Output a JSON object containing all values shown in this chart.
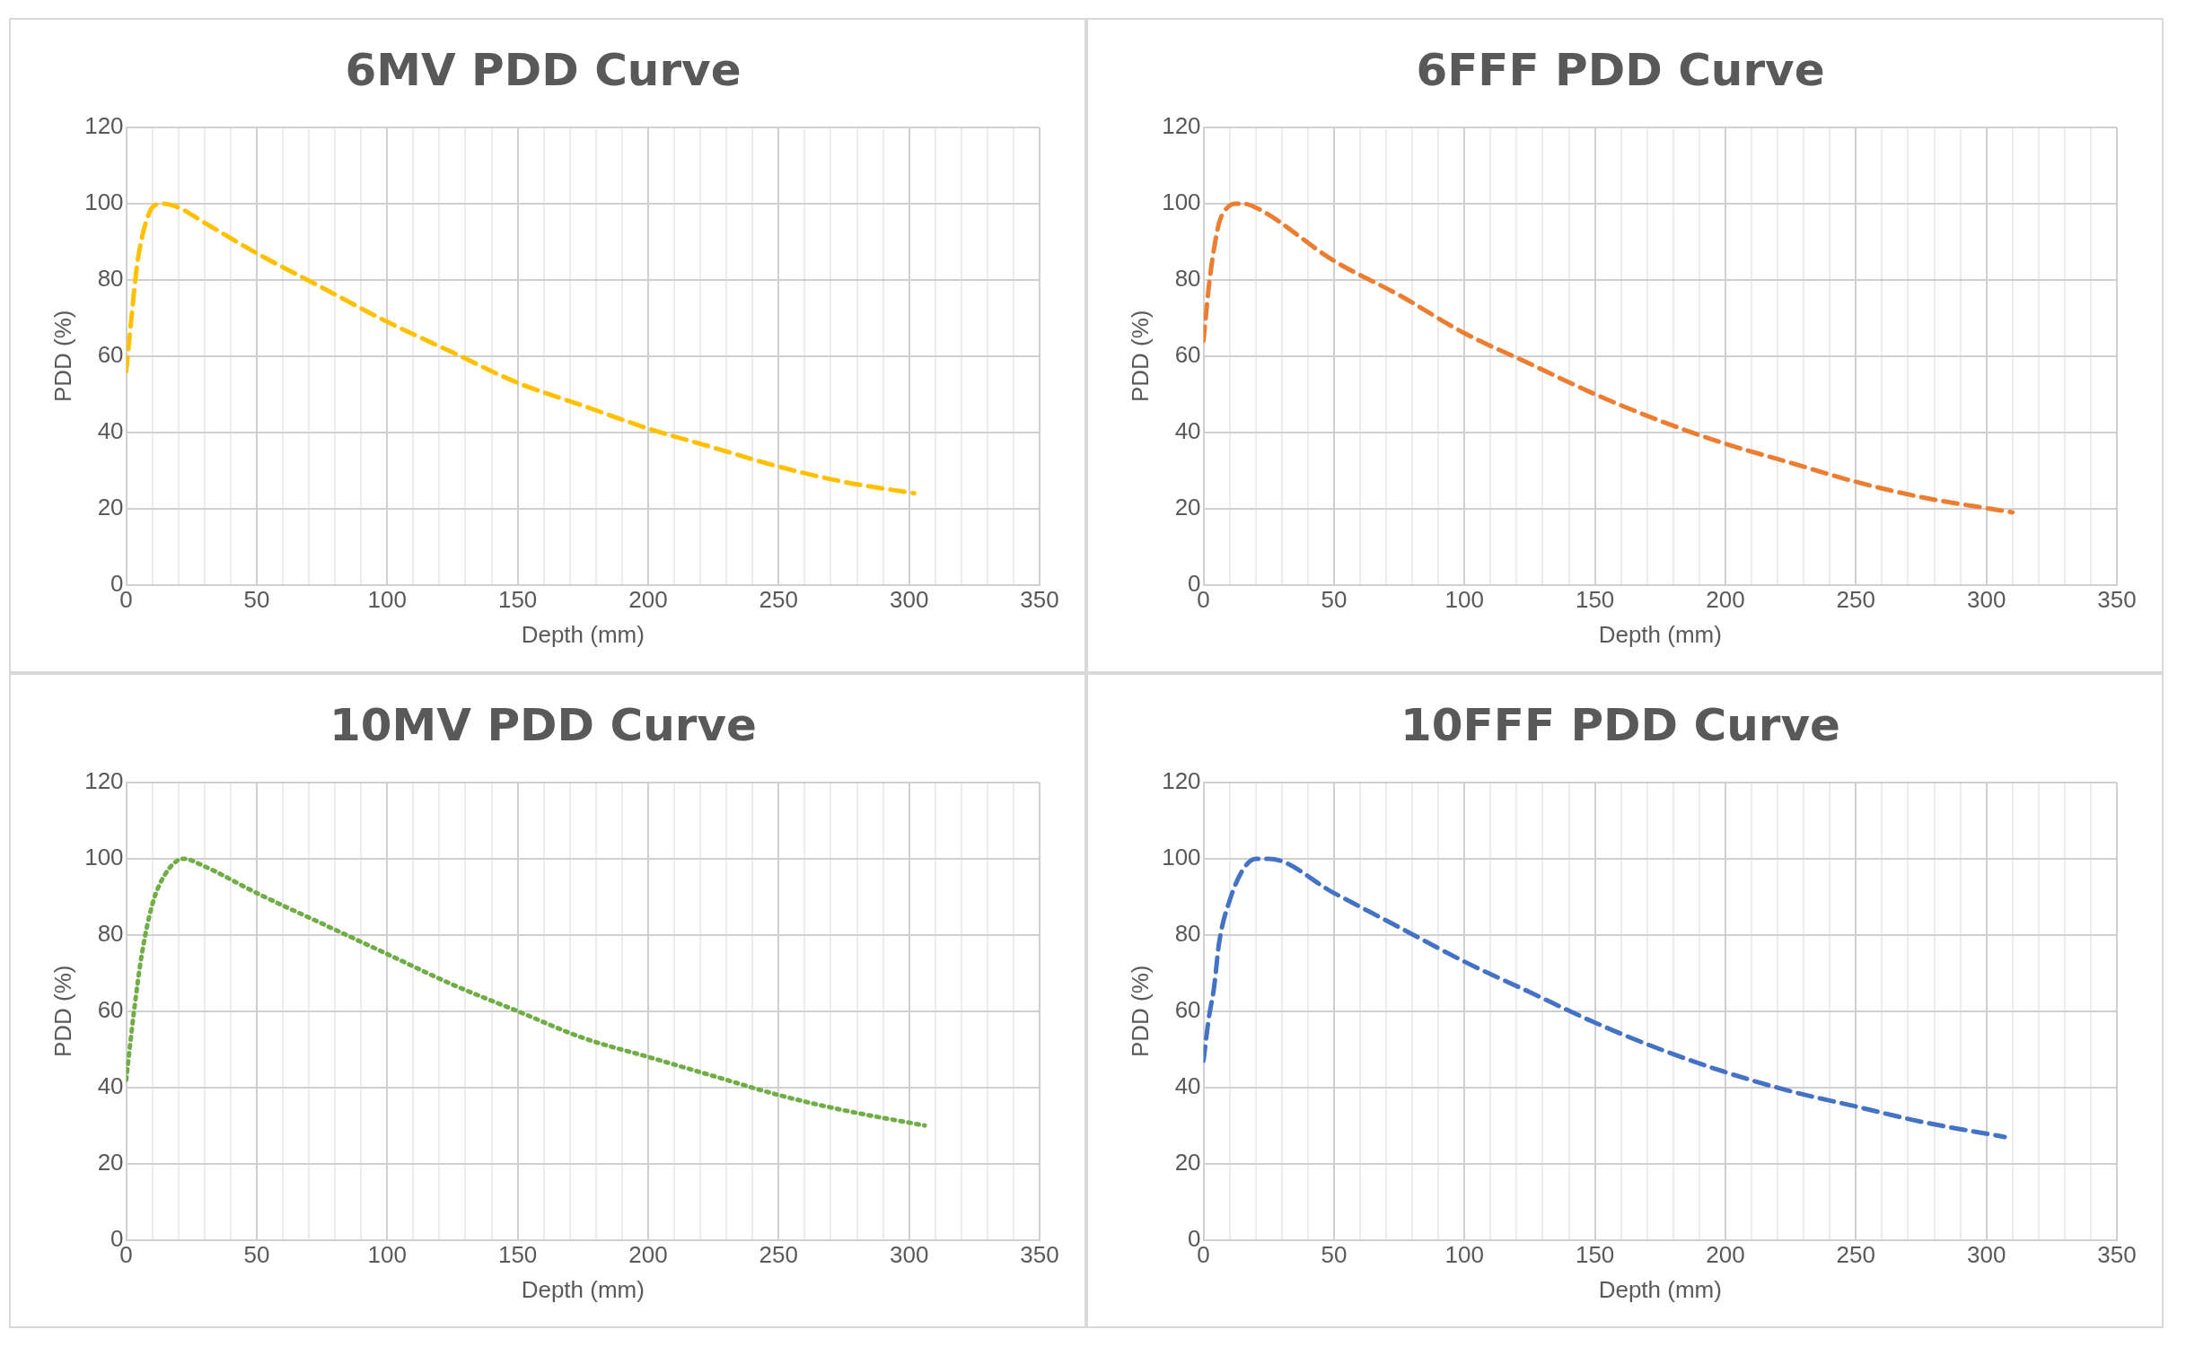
{
  "chart_data": [
    {
      "type": "line",
      "title": "6MV PDD Curve",
      "xlabel": "Depth (mm)",
      "ylabel": "PDD (%)",
      "line_style": "dashed",
      "marker": "none",
      "grid": true,
      "legend": false,
      "series": [
        {
          "color": "#ffc000",
          "x": [
            0,
            2,
            4,
            6,
            8,
            10,
            14,
            20,
            30,
            50,
            75,
            100,
            125,
            150,
            175,
            200,
            225,
            250,
            275,
            302
          ],
          "values": [
            56,
            70,
            83,
            91,
            96,
            99,
            100,
            99,
            95,
            87,
            78,
            69,
            61,
            53,
            47,
            41,
            36,
            31,
            27,
            24
          ]
        }
      ],
      "xlim": [
        0,
        350
      ],
      "xticks": [
        0,
        {
          "value": 10,
          "label": null
        },
        {
          "value": 20,
          "label": null
        },
        {
          "value": 30,
          "label": null
        },
        {
          "value": 40,
          "label": null
        },
        50,
        {
          "value": 60,
          "label": null
        },
        {
          "value": 70,
          "label": null
        },
        {
          "value": 80,
          "label": null
        },
        {
          "value": 90,
          "label": null
        },
        100,
        {
          "value": 110,
          "label": null
        },
        {
          "value": 120,
          "label": null
        },
        {
          "value": 130,
          "label": null
        },
        {
          "value": 140,
          "label": null
        },
        150,
        {
          "value": 160,
          "label": null
        },
        {
          "value": 170,
          "label": null
        },
        {
          "value": 180,
          "label": null
        },
        {
          "value": 190,
          "label": null
        },
        200,
        {
          "value": 210,
          "label": null
        },
        {
          "value": 220,
          "label": null
        },
        {
          "value": 230,
          "label": null
        },
        {
          "value": 240,
          "label": null
        },
        250,
        {
          "value": 260,
          "label": null
        },
        {
          "value": 270,
          "label": null
        },
        {
          "value": 280,
          "label": null
        },
        {
          "value": 290,
          "label": null
        },
        300,
        {
          "value": 310,
          "label": null
        },
        {
          "value": 320,
          "label": null
        },
        {
          "value": 330,
          "label": null
        },
        {
          "value": 340,
          "label": null
        },
        350
      ],
      "ylim": [
        0,
        120
      ],
      "yticks": [
        0,
        20,
        40,
        60,
        80,
        100,
        120
      ]
    },
    {
      "type": "line",
      "title": "6FFF PDD Curve",
      "xlabel": "Depth (mm)",
      "ylabel": "PDD (%)",
      "line_style": "dashed",
      "marker": "none",
      "grid": true,
      "legend": false,
      "series": [
        {
          "color": "#ed7d31",
          "x": [
            0,
            2,
            4,
            6,
            8,
            12,
            15,
            20,
            50,
            75,
            100,
            125,
            150,
            175,
            200,
            225,
            250,
            275,
            310
          ],
          "values": [
            64,
            78,
            88,
            95,
            98,
            100,
            100,
            99,
            85,
            76,
            66,
            58,
            50,
            43,
            37,
            32,
            27,
            23,
            19
          ]
        }
      ],
      "xlim": [
        0,
        350
      ],
      "xticks": [
        0,
        {
          "value": 10,
          "label": null
        },
        {
          "value": 20,
          "label": null
        },
        {
          "value": 30,
          "label": null
        },
        {
          "value": 40,
          "label": null
        },
        50,
        {
          "value": 60,
          "label": null
        },
        {
          "value": 70,
          "label": null
        },
        {
          "value": 80,
          "label": null
        },
        {
          "value": 90,
          "label": null
        },
        100,
        {
          "value": 110,
          "label": null
        },
        {
          "value": 120,
          "label": null
        },
        {
          "value": 130,
          "label": null
        },
        {
          "value": 140,
          "label": null
        },
        150,
        {
          "value": 160,
          "label": null
        },
        {
          "value": 170,
          "label": null
        },
        {
          "value": 180,
          "label": null
        },
        {
          "value": 190,
          "label": null
        },
        200,
        {
          "value": 210,
          "label": null
        },
        {
          "value": 220,
          "label": null
        },
        {
          "value": 230,
          "label": null
        },
        {
          "value": 240,
          "label": null
        },
        250,
        {
          "value": 260,
          "label": null
        },
        {
          "value": 270,
          "label": null
        },
        {
          "value": 280,
          "label": null
        },
        {
          "value": 290,
          "label": null
        },
        300,
        {
          "value": 310,
          "label": null
        },
        {
          "value": 320,
          "label": null
        },
        {
          "value": 330,
          "label": null
        },
        {
          "value": 340,
          "label": null
        },
        350
      ],
      "ylim": [
        0,
        120
      ],
      "yticks": [
        0,
        20,
        40,
        60,
        80,
        100,
        120
      ]
    },
    {
      "type": "line",
      "title": "10MV PDD Curve",
      "xlabel": "Depth (mm)",
      "ylabel": "PDD (%)",
      "line_style": "dotted",
      "marker": "none",
      "grid": true,
      "legend": false,
      "series": [
        {
          "color": "#70ad47",
          "x": [
            0,
            3,
            6,
            10,
            15,
            22,
            30,
            50,
            75,
            100,
            125,
            150,
            175,
            200,
            225,
            250,
            275,
            306
          ],
          "values": [
            42,
            60,
            75,
            88,
            96,
            100,
            98,
            91,
            83,
            75,
            67,
            60,
            53,
            48,
            43,
            38,
            34,
            30
          ]
        }
      ],
      "xlim": [
        0,
        350
      ],
      "xticks": [
        0,
        {
          "value": 10,
          "label": null
        },
        {
          "value": 20,
          "label": null
        },
        {
          "value": 30,
          "label": null
        },
        {
          "value": 40,
          "label": null
        },
        50,
        {
          "value": 60,
          "label": null
        },
        {
          "value": 70,
          "label": null
        },
        {
          "value": 80,
          "label": null
        },
        {
          "value": 90,
          "label": null
        },
        100,
        {
          "value": 110,
          "label": null
        },
        {
          "value": 120,
          "label": null
        },
        {
          "value": 130,
          "label": null
        },
        {
          "value": 140,
          "label": null
        },
        150,
        {
          "value": 160,
          "label": null
        },
        {
          "value": 170,
          "label": null
        },
        {
          "value": 180,
          "label": null
        },
        {
          "value": 190,
          "label": null
        },
        200,
        {
          "value": 210,
          "label": null
        },
        {
          "value": 220,
          "label": null
        },
        {
          "value": 230,
          "label": null
        },
        {
          "value": 240,
          "label": null
        },
        250,
        {
          "value": 260,
          "label": null
        },
        {
          "value": 270,
          "label": null
        },
        {
          "value": 280,
          "label": null
        },
        {
          "value": 290,
          "label": null
        },
        300,
        {
          "value": 310,
          "label": null
        },
        {
          "value": 320,
          "label": null
        },
        {
          "value": 330,
          "label": null
        },
        {
          "value": 340,
          "label": null
        },
        350
      ],
      "ylim": [
        0,
        120
      ],
      "yticks": [
        0,
        20,
        40,
        60,
        80,
        100,
        120
      ]
    },
    {
      "type": "line",
      "title": "10FFF PDD Curve",
      "xlabel": "Depth (mm)",
      "ylabel": "PDD (%)",
      "line_style": "dashed",
      "marker": "none",
      "grid": true,
      "legend": false,
      "series": [
        {
          "color": "#4472c4",
          "x": [
            0,
            2,
            4,
            6,
            10,
            15,
            20,
            25,
            50,
            75,
            100,
            125,
            150,
            175,
            200,
            225,
            250,
            275,
            307
          ],
          "values": [
            47,
            58,
            66,
            78,
            89,
            97,
            100,
            100,
            91,
            82,
            73,
            65,
            57,
            50,
            44,
            39,
            35,
            31,
            27
          ]
        }
      ],
      "xlim": [
        0,
        350
      ],
      "xticks": [
        0,
        {
          "value": 10,
          "label": null
        },
        {
          "value": 20,
          "label": null
        },
        {
          "value": 30,
          "label": null
        },
        {
          "value": 40,
          "label": null
        },
        50,
        {
          "value": 60,
          "label": null
        },
        {
          "value": 70,
          "label": null
        },
        {
          "value": 80,
          "label": null
        },
        {
          "value": 90,
          "label": null
        },
        100,
        {
          "value": 110,
          "label": null
        },
        {
          "value": 120,
          "label": null
        },
        {
          "value": 130,
          "label": null
        },
        {
          "value": 140,
          "label": null
        },
        150,
        {
          "value": 160,
          "label": null
        },
        {
          "value": 170,
          "label": null
        },
        {
          "value": 180,
          "label": null
        },
        {
          "value": 190,
          "label": null
        },
        200,
        {
          "value": 210,
          "label": null
        },
        {
          "value": 220,
          "label": null
        },
        {
          "value": 230,
          "label": null
        },
        {
          "value": 240,
          "label": null
        },
        250,
        {
          "value": 260,
          "label": null
        },
        {
          "value": 270,
          "label": null
        },
        {
          "value": 280,
          "label": null
        },
        {
          "value": 290,
          "label": null
        },
        300,
        {
          "value": 310,
          "label": null
        },
        {
          "value": 320,
          "label": null
        },
        {
          "value": 330,
          "label": null
        },
        {
          "value": 340,
          "label": null
        },
        350
      ],
      "ylim": [
        0,
        120
      ],
      "yticks": [
        0,
        20,
        40,
        60,
        80,
        100,
        120
      ]
    }
  ]
}
